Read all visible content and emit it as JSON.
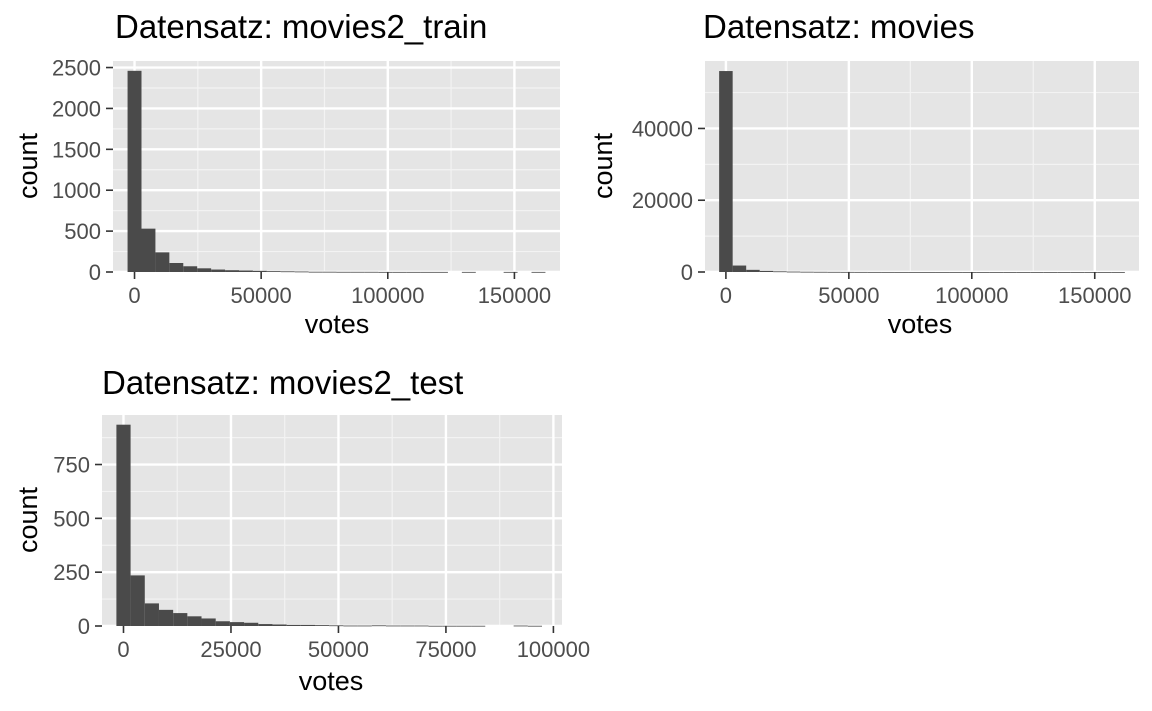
{
  "panels": [
    {
      "title": "Datensatz: movies2_train",
      "xlabel": "votes",
      "ylabel": "count",
      "chart_data": {
        "type": "bar",
        "subtype": "histogram",
        "bin_width": 5500,
        "x_bin_centers": [
          0,
          5500,
          11000,
          16500,
          22000,
          27500,
          33000,
          38500,
          44000,
          49500,
          55000,
          60500,
          66000,
          71500,
          77000,
          82500,
          88000,
          93500,
          99000,
          104500,
          110000,
          115500,
          121000,
          126500,
          132000,
          137500,
          143000,
          148500,
          154000,
          159500
        ],
        "values": [
          2460,
          530,
          240,
          110,
          70,
          45,
          30,
          22,
          18,
          14,
          10,
          8,
          6,
          3,
          3,
          2,
          2,
          2,
          1,
          1,
          1,
          1,
          1,
          0,
          1,
          0,
          0,
          1,
          0,
          1
        ],
        "xlim": [
          -8500,
          168000
        ],
        "ylim": [
          0,
          2580
        ],
        "x_ticks": [
          0,
          50000,
          100000,
          150000
        ],
        "y_ticks": [
          0,
          500,
          1000,
          1500,
          2000,
          2500
        ],
        "grid": true,
        "bar_color": "#4a4a4a",
        "panel_bg": "#e5e5e5"
      }
    },
    {
      "title": "Datensatz: movies",
      "xlabel": "votes",
      "ylabel": "count",
      "chart_data": {
        "type": "bar",
        "subtype": "histogram",
        "bin_width": 5500,
        "x_bin_centers": [
          0,
          5500,
          11000,
          16500,
          22000,
          27500,
          33000,
          38500,
          44000,
          49500,
          55000,
          60500,
          66000,
          71500,
          77000,
          82500,
          88000,
          93500,
          99000,
          104500,
          110000,
          115500,
          121000,
          126500,
          132000,
          137500,
          143000,
          148500,
          154000,
          159500
        ],
        "values": [
          56000,
          1800,
          600,
          300,
          180,
          110,
          70,
          50,
          35,
          25,
          18,
          12,
          9,
          6,
          5,
          4,
          3,
          3,
          2,
          2,
          2,
          1,
          1,
          1,
          1,
          1,
          1,
          1,
          1,
          1
        ],
        "xlim": [
          -8500,
          168000
        ],
        "ylim": [
          0,
          58800
        ],
        "x_ticks": [
          0,
          50000,
          100000,
          150000
        ],
        "y_ticks": [
          0,
          20000,
          40000
        ],
        "grid": true,
        "bar_color": "#4a4a4a",
        "panel_bg": "#e5e5e5"
      }
    },
    {
      "title": "Datensatz: movies2_test",
      "xlabel": "votes",
      "ylabel": "count",
      "chart_data": {
        "type": "bar",
        "subtype": "histogram",
        "bin_width": 3300,
        "x_bin_centers": [
          0,
          3300,
          6600,
          9900,
          13200,
          16500,
          19800,
          23100,
          26400,
          29700,
          33000,
          36300,
          39600,
          42900,
          46200,
          49500,
          52800,
          56100,
          59400,
          62700,
          66000,
          69300,
          72600,
          75900,
          79200,
          82500,
          85800,
          89100,
          92400,
          95700
        ],
        "values": [
          935,
          235,
          105,
          75,
          60,
          45,
          35,
          22,
          18,
          15,
          9,
          7,
          5,
          5,
          4,
          3,
          2,
          2,
          3,
          2,
          2,
          2,
          1,
          1,
          1,
          1,
          0,
          0,
          2,
          1
        ],
        "xlim": [
          -5000,
          102000
        ],
        "ylim": [
          0,
          980
        ],
        "x_ticks": [
          0,
          25000,
          50000,
          75000,
          100000
        ],
        "y_ticks": [
          0,
          250,
          500,
          750
        ],
        "grid": true,
        "bar_color": "#4a4a4a",
        "panel_bg": "#e5e5e5"
      }
    }
  ]
}
